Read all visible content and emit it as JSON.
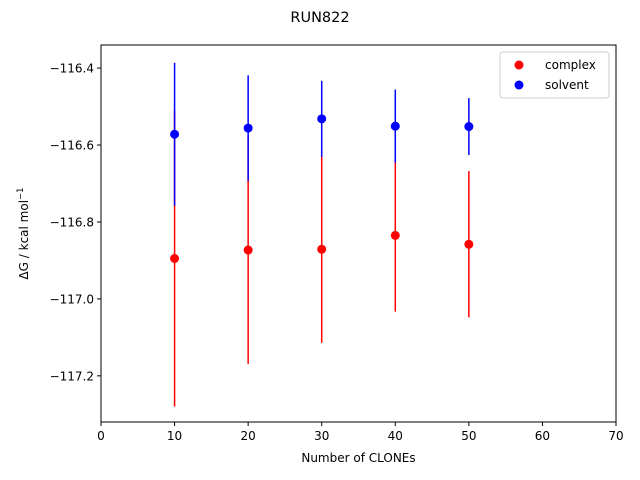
{
  "chart_data": {
    "type": "scatter",
    "title": "RUN822",
    "xlabel": "Number of CLONEs",
    "ylabel": "ΔG / kcal mol",
    "ylabel_superscript": "−1",
    "xlim": [
      0,
      70
    ],
    "ylim": [
      -117.32,
      -116.34
    ],
    "x_ticks": [
      0,
      10,
      20,
      30,
      40,
      50,
      60,
      70
    ],
    "x_tick_labels": [
      "0",
      "10",
      "20",
      "30",
      "40",
      "50",
      "60",
      "70"
    ],
    "y_ticks": [
      -117.2,
      -117.0,
      -116.8,
      -116.6,
      -116.4
    ],
    "y_tick_labels": [
      "−117.2",
      "−117.0",
      "−116.8",
      "−116.6",
      "−116.4"
    ],
    "grid": false,
    "legend_position": "top-right",
    "series": [
      {
        "name": "complex",
        "color": "#ff0000",
        "x": [
          10,
          20,
          30,
          40,
          50
        ],
        "y": [
          -116.895,
          -116.873,
          -116.871,
          -116.835,
          -116.858
        ],
        "yerr": [
          0.385,
          0.296,
          0.243,
          0.198,
          0.19
        ]
      },
      {
        "name": "solvent",
        "color": "#0000ff",
        "x": [
          10,
          20,
          30,
          40,
          50
        ],
        "y": [
          -116.572,
          -116.556,
          -116.532,
          -116.551,
          -116.552
        ],
        "yerr": [
          0.186,
          0.137,
          0.099,
          0.095,
          0.074
        ]
      }
    ]
  }
}
